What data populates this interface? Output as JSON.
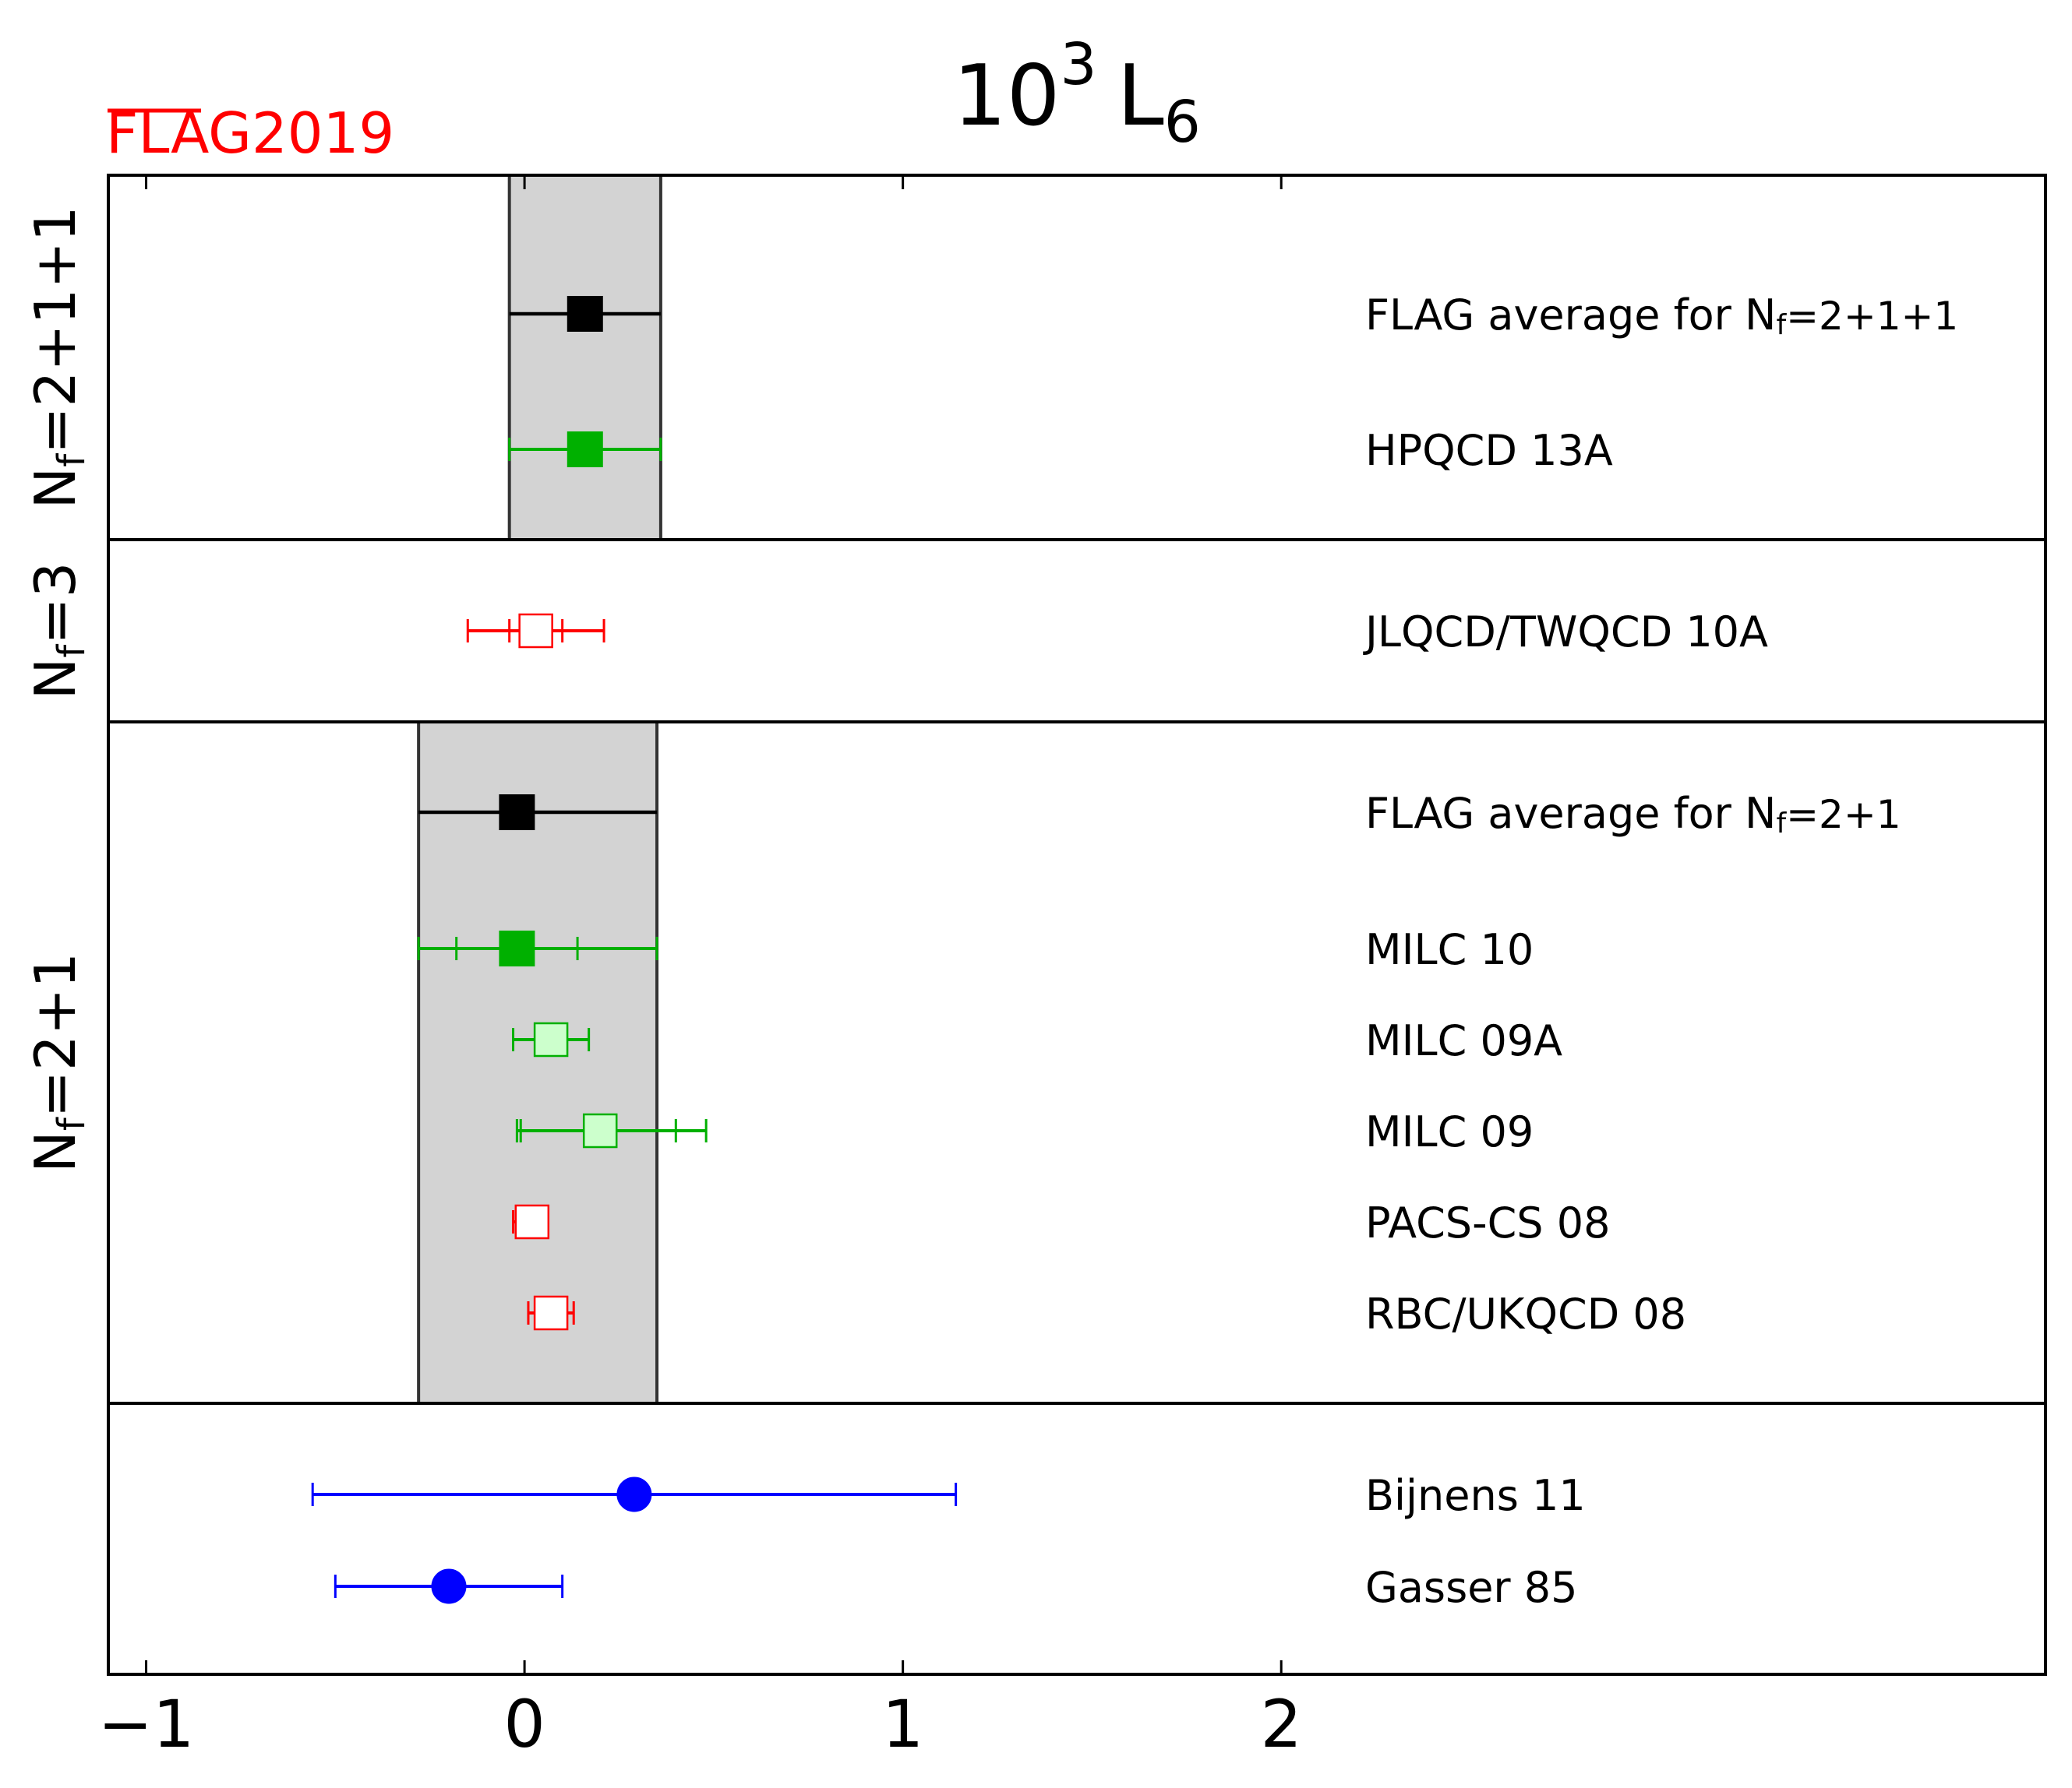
{
  "chart_data": {
    "type": "scatter",
    "title": {
      "base": "10",
      "exp": "3",
      "symbol": "L",
      "sub": "6"
    },
    "logo": {
      "flag": "FLAG",
      "year": "2019"
    },
    "colors": {
      "black": "#000000",
      "green": "#00b000",
      "light_green_fill": "#ccffcc",
      "red": "#ff0000",
      "blue": "#0000ff",
      "band": "#d3d3d3"
    },
    "xlim": [
      -1.1,
      4.02
    ],
    "xticks": [
      {
        "value": -1,
        "label": "−1"
      },
      {
        "value": 0,
        "label": "0"
      },
      {
        "value": 1,
        "label": "1"
      },
      {
        "value": 2,
        "label": "2"
      }
    ],
    "panels": [
      {
        "label": "N_f=2+1+1",
        "label_text": {
          "n": "N",
          "sub": "f",
          "rest": "=2+1+1"
        },
        "rows": 2,
        "band": [
          -0.04,
          0.36
        ],
        "points": [
          {
            "name": "FLAG average for N_f=2+1+1",
            "label_text": {
              "pre": "FLAG average for N",
              "sub": "f",
              "post": "=2+1+1"
            },
            "value": 0.16,
            "stat": null,
            "total": [
              -0.04,
              0.36
            ],
            "color": "black",
            "marker": "square",
            "fill": "filled",
            "caps": false
          },
          {
            "name": "HPQCD 13A",
            "label_text": {
              "pre": "HPQCD 13A"
            },
            "value": 0.16,
            "stat": null,
            "total": [
              -0.04,
              0.36
            ],
            "color": "green",
            "marker": "square",
            "fill": "filled",
            "caps": true
          }
        ]
      },
      {
        "label": "N_f=3",
        "label_text": {
          "n": "N",
          "sub": "f",
          "rest": "=3"
        },
        "rows": 1,
        "band": null,
        "points": [
          {
            "name": "JLQCD/TWQCD 10A",
            "label_text": {
              "pre": "JLQCD/TWQCD 10A"
            },
            "value": 0.03,
            "stat": [
              -0.04,
              0.1
            ],
            "total": [
              -0.15,
              0.21
            ],
            "color": "red",
            "marker": "square",
            "fill": "open",
            "caps": true
          }
        ]
      },
      {
        "label": "N_f=2+1",
        "label_text": {
          "n": "N",
          "sub": "f",
          "rest": "=2+1"
        },
        "rows": 6,
        "band": [
          -0.28,
          0.35
        ],
        "points": [
          {
            "name": "FLAG average for N_f=2+1",
            "label_text": {
              "pre": "FLAG average for N",
              "sub": "f",
              "post": "=2+1"
            },
            "value": -0.02,
            "stat": null,
            "total": [
              -0.28,
              0.35
            ],
            "color": "black",
            "marker": "square",
            "fill": "filled",
            "caps": false
          },
          {
            "name": "MILC 10",
            "label_text": {
              "pre": "MILC 10"
            },
            "value": -0.02,
            "stat": [
              -0.18,
              0.14
            ],
            "total": [
              -0.28,
              0.35
            ],
            "color": "green",
            "marker": "square",
            "fill": "filled",
            "caps": true
          },
          {
            "name": "MILC 09A",
            "label_text": {
              "pre": "MILC 09A"
            },
            "value": 0.07,
            "stat": null,
            "total": [
              -0.03,
              0.17
            ],
            "color": "green",
            "marker": "square",
            "fill": "light",
            "caps": true
          },
          {
            "name": "MILC 09",
            "label_text": {
              "pre": "MILC 09"
            },
            "value": 0.2,
            "stat": [
              -0.01,
              0.4
            ],
            "total": [
              -0.02,
              0.48
            ],
            "color": "green",
            "marker": "square",
            "fill": "light",
            "caps": true
          },
          {
            "name": "PACS-CS 08",
            "label_text": {
              "pre": "PACS-CS 08"
            },
            "value": 0.02,
            "stat": null,
            "total": [
              -0.03,
              0.06
            ],
            "color": "red",
            "marker": "square",
            "fill": "open",
            "caps": true
          },
          {
            "name": "RBC/UKQCD 08",
            "label_text": {
              "pre": "RBC/UKQCD 08"
            },
            "value": 0.07,
            "stat": null,
            "total": [
              0.01,
              0.13
            ],
            "color": "red",
            "marker": "square",
            "fill": "open",
            "caps": true
          }
        ]
      },
      {
        "label": "",
        "label_text": null,
        "rows": 2,
        "band": null,
        "points": [
          {
            "name": "Bijnens 11",
            "label_text": {
              "pre": "Bijnens 11"
            },
            "value": 0.29,
            "stat": null,
            "total": [
              -0.56,
              1.14
            ],
            "color": "blue",
            "marker": "circle",
            "fill": "filled",
            "caps": true
          },
          {
            "name": "Gasser 85",
            "label_text": {
              "pre": "Gasser 85"
            },
            "value": -0.2,
            "stat": null,
            "total": [
              -0.5,
              0.1
            ],
            "color": "blue",
            "marker": "circle",
            "fill": "filled",
            "caps": true
          }
        ]
      }
    ]
  }
}
